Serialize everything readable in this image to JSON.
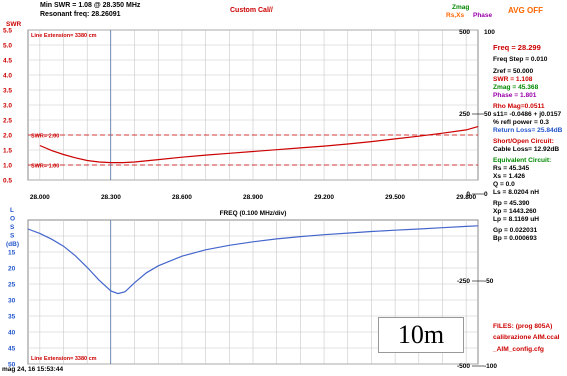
{
  "header": {
    "min_swr_label": "Min SWR =",
    "min_swr_value": "1.08 @  28.350 MHz",
    "resonant_label": "Resonant freq:",
    "resonant_value": "28.26091",
    "title": "Custom Cal//",
    "zmag_label": "Zmag",
    "rsxs_label": "Rs,Xs",
    "phase_label": "Phase",
    "avg": "AVG OFF"
  },
  "chart_data": [
    {
      "type": "line",
      "series_label": "SWR",
      "color": "#cc0000",
      "x": [
        28.0,
        28.05,
        28.1,
        28.15,
        28.2,
        28.25,
        28.3,
        28.35,
        28.4,
        28.5,
        28.6,
        28.7,
        28.8,
        28.9,
        29.0,
        29.1,
        29.2,
        29.3,
        29.4,
        29.5,
        29.6,
        29.7,
        29.8,
        29.85
      ],
      "y": [
        1.65,
        1.48,
        1.35,
        1.24,
        1.15,
        1.1,
        1.08,
        1.08,
        1.1,
        1.18,
        1.26,
        1.33,
        1.39,
        1.45,
        1.51,
        1.57,
        1.63,
        1.7,
        1.78,
        1.87,
        1.96,
        2.06,
        2.17,
        2.28
      ],
      "ylim": [
        0.5,
        5.5
      ],
      "ylabel": "SWR",
      "ytick_labels": [
        "5.5",
        "5.0",
        "4.5",
        "4.0",
        "3.5",
        "3.0",
        "2.5",
        "2.0",
        "1.5",
        "1.0",
        "0.5"
      ],
      "right_ytick_labels": [
        "500",
        "250",
        "0"
      ],
      "right_ytick_labels_2": [
        "100",
        "50",
        "0"
      ],
      "annotations": [
        "Line Extension= 3380 cm",
        "SWR= 2.00",
        "SWR= 1.00"
      ],
      "xlim": [
        27.95,
        29.85
      ],
      "xtick_labels": [
        "28.000",
        "28.300",
        "28.600",
        "28.900",
        "29.200",
        "29.500",
        "29.800"
      ],
      "xticks": [
        28.0,
        28.3,
        28.6,
        28.9,
        29.2,
        29.5,
        29.8
      ],
      "xlabel": "FREQ (0.100 MHz/div)"
    },
    {
      "type": "line",
      "series_label": "L O S S (dB)",
      "color": "#4466cc",
      "x": [
        27.95,
        28.0,
        28.05,
        28.1,
        28.15,
        28.2,
        28.25,
        28.3,
        28.33,
        28.36,
        28.4,
        28.45,
        28.5,
        28.6,
        28.7,
        28.8,
        28.9,
        29.0,
        29.1,
        29.2,
        29.3,
        29.4,
        29.5,
        29.6,
        29.7,
        29.8,
        29.85
      ],
      "y": [
        7.8,
        9.2,
        11.0,
        13.2,
        16.2,
        19.8,
        23.8,
        27.2,
        28.0,
        27.4,
        24.6,
        21.5,
        19.3,
        16.3,
        14.3,
        12.9,
        11.8,
        10.9,
        10.2,
        9.6,
        9.1,
        8.6,
        8.2,
        7.8,
        7.4,
        7.0,
        6.8
      ],
      "ylim": [
        5,
        50
      ],
      "ytick_labels": [
        "15",
        "20",
        "25",
        "30",
        "35",
        "40",
        "45",
        "50"
      ],
      "right_ytick_labels": [
        "-250",
        "-500"
      ],
      "right_ytick_labels_2": [
        "-50",
        "-100"
      ],
      "annotations": [
        "Line Extension= 3380 cm"
      ]
    }
  ],
  "panel": {
    "freq": "Freq = 28.299",
    "freq_step": "Freq Step = 0.010",
    "zref": "Zref = 50.000",
    "swr": "SWR = 1.108",
    "zmag": "Zmag = 45.368",
    "phase": "Phase = 1.801",
    "rho_mag": "Rho Mag=0.0511",
    "s11": "s11= -0.0486 + j0.0157",
    "refl_power": "% refl power = 0.3",
    "return_loss": "Return Loss= 25.84dB",
    "short_open_title": "Short/Open Circuit:",
    "cable_loss": "Cable Loss= 12.92dB",
    "equiv_title": "Equivalent Circuit:",
    "rs": "Rs = 45.345",
    "xs": "Xs = 1.426",
    "q": "Q = 0.0",
    "ls": "Ls = 8.0204 nH",
    "rp": "Rp = 45.390",
    "xp": "Xp = 1443.260",
    "lp": "Lp = 8.1169 uH",
    "gp": "Gp = 0.022031",
    "bp": "Bp = 0.000693",
    "files_title": "FILES: (prog 805A)",
    "file1": "calibrazione AIM.ccal",
    "file2": "_AIM_config.cfg"
  },
  "watermark": "10m",
  "timestamp": "mag 24, 16  15:53:44"
}
